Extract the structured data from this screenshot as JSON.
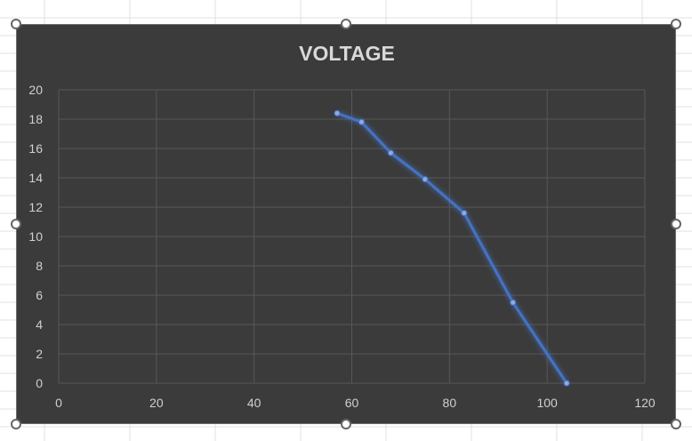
{
  "chart_data": {
    "type": "scatter",
    "title": "VOLTAGE",
    "xlabel": "",
    "ylabel": "",
    "xlim": [
      0,
      120
    ],
    "ylim": [
      0,
      20
    ],
    "xticks": [
      "0",
      "20",
      "40",
      "60",
      "80",
      "100",
      "120"
    ],
    "yticks": [
      "0",
      "2",
      "4",
      "6",
      "8",
      "10",
      "12",
      "14",
      "16",
      "18",
      "20"
    ],
    "grid": true,
    "legend": "none",
    "series": [
      {
        "style": "lines-with-markers",
        "x": [
          57,
          62,
          68,
          75,
          83,
          93,
          104
        ],
        "y": [
          18.4,
          17.8,
          15.7,
          13.9,
          11.6,
          5.5,
          0
        ]
      }
    ],
    "colors": {
      "background": "#3b3b3b",
      "gridline": "#575757",
      "series_line": "#4472c4",
      "series_marker": "#8faadc",
      "text": "#d0d0d0",
      "title": "#d9d9d9"
    }
  }
}
